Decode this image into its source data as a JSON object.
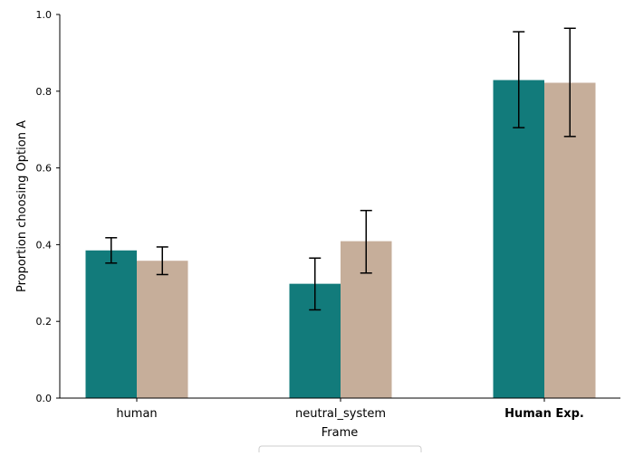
{
  "chart_data": {
    "type": "bar",
    "title": "",
    "xlabel": "Frame",
    "ylabel": "Proportion choosing Option A",
    "categories": [
      "human",
      "neutral_system",
      "Human Exp."
    ],
    "category_bold": [
      false,
      false,
      true
    ],
    "ylim": [
      0,
      1.0
    ],
    "yticks": [
      0.0,
      0.2,
      0.4,
      0.6,
      0.8,
      1.0
    ],
    "ytick_labels": [
      "0.0",
      "0.2",
      "0.4",
      "0.6",
      "0.8",
      "1.0"
    ],
    "grid": false,
    "legend_placement": "bottom-center",
    "series": [
      {
        "color": "#127b7b",
        "values": [
          0.385,
          0.298,
          0.829
        ],
        "err_low": [
          0.352,
          0.23,
          0.705
        ],
        "err_high": [
          0.418,
          0.365,
          0.955
        ]
      },
      {
        "color": "#c6ae9a",
        "values": [
          0.358,
          0.409,
          0.822
        ],
        "err_low": [
          0.322,
          0.326,
          0.682
        ],
        "err_high": [
          0.394,
          0.489,
          0.964
        ]
      }
    ]
  }
}
